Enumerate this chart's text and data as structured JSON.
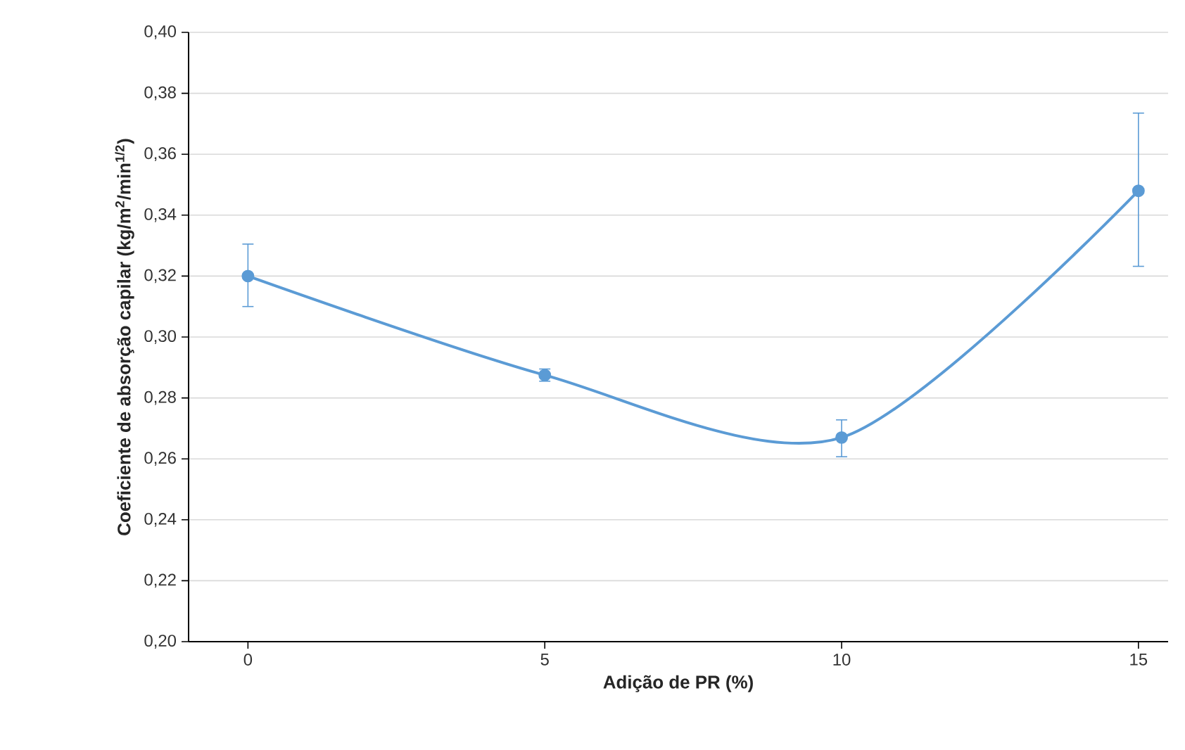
{
  "chart_data": {
    "type": "line",
    "xlabel": "Adição de PR (%)",
    "ylabel": "Coeficiente de absorção capilar (kg/m$^{2}$/min$^{1/2}$)",
    "x": [
      0,
      5,
      10,
      15
    ],
    "series": [
      {
        "color": "#5b9bd5",
        "values": [
          0.32,
          0.2875,
          0.267,
          0.348
        ],
        "errors": [
          [
            0.31,
            0.3305
          ],
          [
            0.2855,
            0.2895
          ],
          [
            0.2607,
            0.2728
          ],
          [
            0.3232,
            0.3735
          ]
        ]
      }
    ],
    "xlim": [
      -1,
      15.5
    ],
    "xticks": [
      0,
      5,
      10,
      15
    ],
    "ylim": [
      0.2,
      0.4
    ],
    "yticks": [
      {
        "value": 0.2,
        "label": "0,20"
      },
      {
        "value": 0.22,
        "label": "0,22"
      },
      {
        "value": 0.24,
        "label": "0,24"
      },
      {
        "value": 0.26,
        "label": "0,26"
      },
      {
        "value": 0.28,
        "label": "0,28"
      },
      {
        "value": 0.3,
        "label": "0,30"
      },
      {
        "value": 0.32,
        "label": "0,32"
      },
      {
        "value": 0.34,
        "label": "0,34"
      },
      {
        "value": 0.36,
        "label": "0,36"
      },
      {
        "value": 0.38,
        "label": "0,38"
      },
      {
        "value": 0.4,
        "label": "0,40"
      }
    ],
    "grid": "y",
    "marker": "circle",
    "line_style": "solid"
  }
}
